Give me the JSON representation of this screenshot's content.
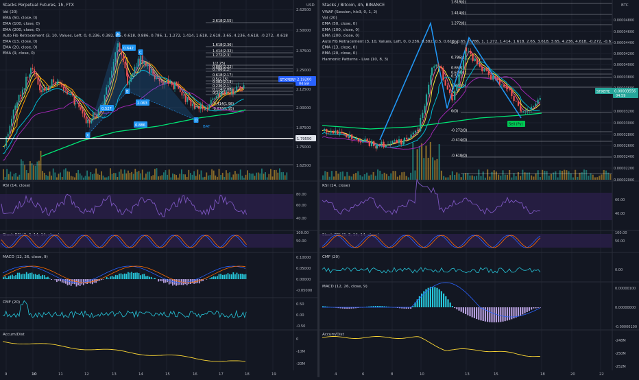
{
  "left": {
    "title": "Stacks Perpetual Futures, 1h, FTX",
    "currency": "USD",
    "overlays": [
      "Vol (20)",
      "EMA (50, close, 0)",
      "EMA (100, close, 0)",
      "EMA (200, close, 0)",
      "Auto Fib Retracement (3, 10, Values, Left, 0, 0.236, 0.382, 0.5, 0.618, 0.886, 0.786, 1, 1.272, 1.414, 1.618, 2.618, 3.65, 4.236, 4.618, -0.272, -0.618",
      "EMA (13, close, 0)",
      "EMA (20, close, 0)",
      "EMA (9, close, 0)"
    ],
    "price_axis": [
      "2.62500",
      "2.50000",
      "2.37500",
      "2.25000",
      "2.12500",
      "2.00000",
      "1.87500",
      "1.75000",
      "1.62500"
    ],
    "fib_labels": [
      "2.618(2.55)",
      "1.618(2.36)",
      "1.414(2.32)",
      "1.272(2.3)",
      "1(2.25)",
      "0.886(2.22)",
      "0.786(2.2)",
      "0.618(2.17)",
      "0.5(2.15)",
      "0.382(2.13)",
      "0.236(2.1)",
      "0.114(2.08)",
      "0(2.06)",
      "-0.414(1.98)",
      "-0.618(1.95)"
    ],
    "pattern_labels": [
      "X",
      "A",
      "B",
      "C",
      "D"
    ],
    "ratio_labels": [
      "0.642",
      "0.527",
      "2.063",
      "0.886"
    ],
    "bat_label": "BAT",
    "symbol_tag": "STXPERP",
    "last_price": "2.19200",
    "last_price_time": "04:59",
    "marker_price": "1.79550",
    "time_axis": [
      "9",
      "10",
      "11",
      "12",
      "13",
      "14",
      "15",
      "16",
      "17",
      "18",
      "19"
    ],
    "time_bold": "10",
    "indicators": [
      {
        "name": "RSI (14, close)",
        "axis": [
          "80.00",
          "60.00",
          "40.00"
        ]
      },
      {
        "name": "Stoch RSI (3, 3, 14, 14, close)",
        "axis": [
          "100.00",
          "50.00"
        ]
      },
      {
        "name": "MACD (12, 26, close, 9)",
        "axis": [
          "0.10000",
          "0.05000",
          "0.00000",
          "-0.05000"
        ]
      },
      {
        "name": "CMF (20)",
        "axis": [
          "0.50",
          "0.00",
          "-0.50"
        ]
      },
      {
        "name": "Accum/Dist",
        "axis": [
          "0",
          "-10M",
          "-20M"
        ]
      }
    ]
  },
  "right": {
    "title": "Stacks / Bitcoin, 4h, BINANCE",
    "currency": "BTC",
    "overlays": [
      "VWAP (Session, hlc3, 0, 1, 2)",
      "Vol (20)",
      "EMA (50, close, 0)",
      "EMA (100, close, 0)",
      "EMA (200, close, 0)",
      "Auto Fib Retracement (3, 10, Values, Left, 0, 0.236, 0.382, 0.5, 0.618, 0.65, 0.786, 1, 1.272, 1.414, 1.618, 2.65, 3.618, 3.65, 4.236, 4.618, -0.272, -0.61",
      "EMA (13, close, 0)",
      "EMA (20, close, 0)",
      "Harmonic Patterns - Live (10, 8, 3)"
    ],
    "price_axis": [
      "0.00004800",
      "0.00004600",
      "0.00004400",
      "0.00004200",
      "0.00004000",
      "0.00003800",
      "0.00003600",
      "0.00003200",
      "0.00003000",
      "0.00002800",
      "0.00002600",
      "0.00002400",
      "0.00002200",
      "0.00002000"
    ],
    "fib_labels": [
      "1.618(0)",
      "1.414(0)",
      "1.272(0)",
      "1(0)",
      "0.786(0)",
      "0.65(0)",
      "0.618(0)",
      "0.5(0)",
      "0.382(0)",
      "0(0)",
      "-0.272(0)",
      "-0.414(0)",
      "-0.618(0)"
    ],
    "symbol_tag": "STXBTC",
    "last_price": "0.00003556",
    "last_price_time": "04:59",
    "sell_label": "Sell (Py)",
    "time_axis": [
      "4",
      "6",
      "8",
      "10",
      "13",
      "15",
      "18",
      "20",
      "22"
    ],
    "indicators": [
      {
        "name": "RSI (14, close)",
        "axis": [
          "60.00",
          "40.00"
        ]
      },
      {
        "name": "Stoch RSI (3, 3, 14, 14, close)",
        "axis": [
          "100.00",
          "50.00"
        ]
      },
      {
        "name": "CMF (20)",
        "axis": [
          "0.00"
        ]
      },
      {
        "name": "MACD (12, 26, close, 9)",
        "axis": [
          "0.00000100",
          "0.00000000",
          "-0.00000100"
        ]
      },
      {
        "name": "Accum/Dist",
        "axis": [
          "-248M",
          "-250M",
          "-252M",
          "-254M"
        ]
      }
    ]
  },
  "colors": {
    "background": "#131722",
    "grid": "#1e222d",
    "text": "#d1d4dc",
    "up": "#26a69a",
    "down": "#ef5350",
    "volume": "#f0b90b",
    "ema200": "#00e676",
    "ema100": "#9c27b0",
    "ema50": "#00bcd4",
    "fib": "#e0e3eb",
    "pattern": "#2196f3",
    "rsi_band": "#2a1f4a",
    "accum": "#fdd835",
    "macd_hist_pos": "#26c6da",
    "macd_hist_neg": "#b39ddb"
  }
}
